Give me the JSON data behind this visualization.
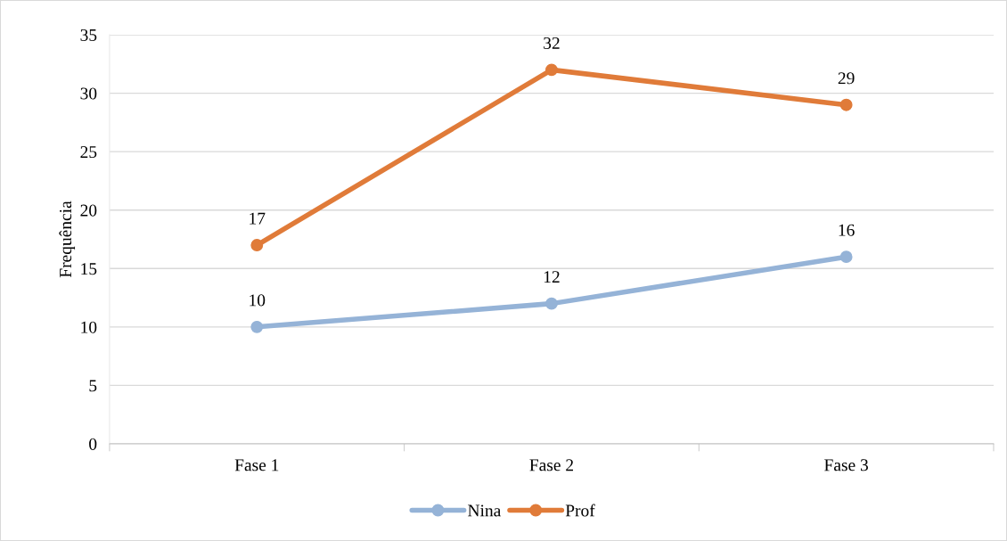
{
  "chart_data": {
    "type": "line",
    "ylabel": "Frequência",
    "categories": [
      "Fase 1",
      "Fase 2",
      "Fase 3"
    ],
    "series": [
      {
        "name": "Nina",
        "color": "#95b3d7",
        "values": [
          10,
          12,
          16
        ]
      },
      {
        "name": "Prof",
        "color": "#e07b39",
        "values": [
          17,
          32,
          29
        ]
      }
    ],
    "ylim": [
      0,
      35
    ],
    "yticks": [
      0,
      5,
      10,
      15,
      20,
      25,
      30,
      35
    ],
    "grid": "y",
    "legend": "bottom",
    "marker": "circle",
    "line_style": "solid",
    "data_labels": true
  }
}
